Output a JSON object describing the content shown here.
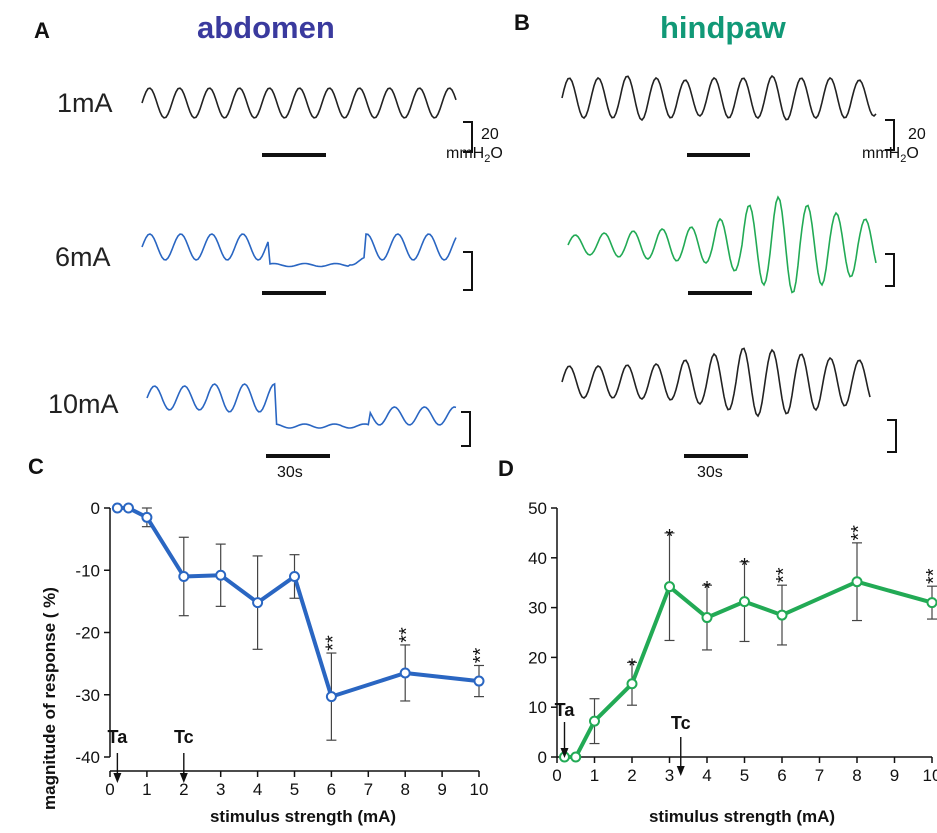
{
  "panels": {
    "A": {
      "letter": "A",
      "title": "abdomen"
    },
    "B": {
      "letter": "B",
      "title": "hindpaw"
    },
    "C": {
      "letter": "C"
    },
    "D": {
      "letter": "D"
    }
  },
  "rows": [
    "1mA",
    "6mA",
    "10mA"
  ],
  "scalebar": {
    "value": "20",
    "unit": "mmH",
    "unit_sub": "2",
    "unit_tail": "O",
    "time": "30s"
  },
  "colors": {
    "abdomen": "#2a66c2",
    "hindpaw": "#22aa55",
    "black_trace": "#222222",
    "abdomen_title": "#3a3a9e",
    "hindpaw_title": "#119977"
  },
  "chart_data": [
    {
      "type": "line",
      "panel": "C",
      "x": [
        0.2,
        0.5,
        1,
        2,
        3,
        4,
        5,
        6,
        8,
        10
      ],
      "values": [
        0,
        0,
        -1.5,
        -11,
        -10.8,
        -15.2,
        -11,
        -30.3,
        -26.5,
        -27.8
      ],
      "error": [
        0,
        0,
        1.5,
        6.3,
        5,
        7.5,
        3.5,
        7,
        4.5,
        2.5
      ],
      "significance": [
        "",
        "",
        "",
        "",
        "",
        "",
        "",
        "**",
        "**",
        "**"
      ],
      "markers": [
        {
          "label": "Ta",
          "x": 0.2
        },
        {
          "label": "Tc",
          "x": 2
        }
      ],
      "xlabel": "stimulus strength (mA)",
      "ylabel": "magnitude of response (  %)",
      "xticks": [
        0,
        1,
        2,
        3,
        4,
        5,
        6,
        7,
        8,
        9,
        10
      ],
      "yticks": [
        0,
        -10,
        -20,
        -30,
        -40
      ],
      "xlim": [
        0,
        10
      ],
      "ylim": [
        -40,
        0
      ],
      "color": "#2a66c2"
    },
    {
      "type": "line",
      "panel": "D",
      "x": [
        0.2,
        0.5,
        1,
        2,
        3,
        4,
        5,
        6,
        8,
        10
      ],
      "values": [
        0,
        0,
        7.2,
        14.7,
        34.2,
        28,
        31.2,
        28.5,
        35.2,
        31
      ],
      "error": [
        0,
        0,
        4.5,
        4.3,
        10.8,
        6.5,
        8,
        6,
        7.8,
        3.3
      ],
      "significance": [
        "",
        "",
        "",
        "*",
        "*",
        "*",
        "*",
        "**",
        "**",
        "**"
      ],
      "markers": [
        {
          "label": "Ta",
          "x": 0.2
        },
        {
          "label": "Tc",
          "x": 3.3
        }
      ],
      "xlabel": "stimulus strength (mA)",
      "xticks": [
        0,
        1,
        2,
        3,
        4,
        5,
        6,
        7,
        8,
        9,
        10
      ],
      "yticks": [
        0,
        10,
        20,
        30,
        40,
        50
      ],
      "xlim": [
        0,
        10
      ],
      "ylim": [
        0,
        50
      ],
      "color": "#22aa55"
    }
  ]
}
